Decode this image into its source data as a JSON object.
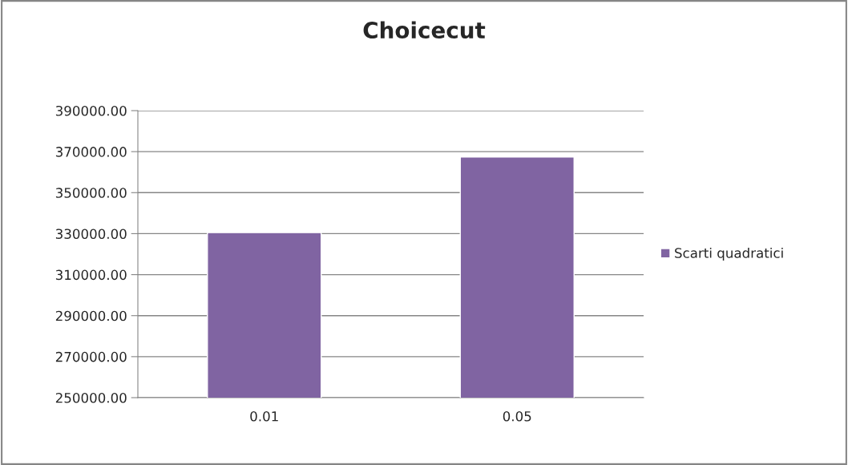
{
  "chart_data": {
    "type": "bar",
    "title": "Choicecut",
    "categories": [
      "0.01",
      "0.05"
    ],
    "series": [
      {
        "name": "Scarti quadratici",
        "color": "#8064a2",
        "values": [
          330500,
          367400
        ]
      }
    ],
    "ylim": [
      250000,
      390000
    ],
    "yticks": [
      {
        "value": 250000,
        "label": "250000.00"
      },
      {
        "value": 270000,
        "label": "270000.00"
      },
      {
        "value": 290000,
        "label": "290000.00"
      },
      {
        "value": 310000,
        "label": "310000.00"
      },
      {
        "value": 330000,
        "label": "330000.00"
      },
      {
        "value": 350000,
        "label": "350000.00"
      },
      {
        "value": 370000,
        "label": "370000.00"
      },
      {
        "value": 390000,
        "label": "390000.00"
      }
    ],
    "grid": "y",
    "legend": "right"
  }
}
